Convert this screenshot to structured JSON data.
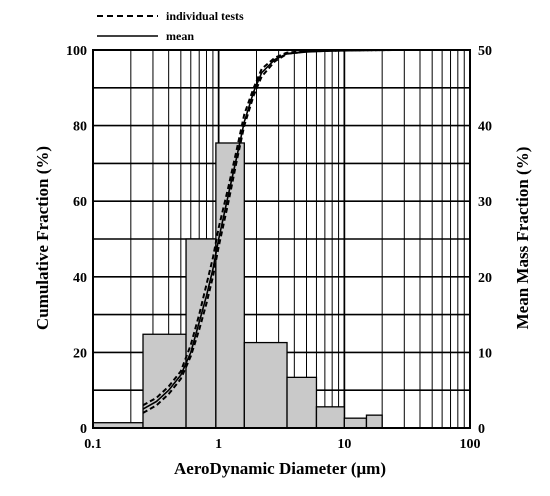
{
  "chart_data": {
    "type": "bar",
    "xlabel": "AeroDynamic Diameter (μm)",
    "ylabel_left": "Cumulative Fraction (%)",
    "ylabel_right": "Mean Mass Fraction (%)",
    "x_scale": "log",
    "xlim": [
      0.1,
      100
    ],
    "ylim_left": [
      0,
      100
    ],
    "ylim_right": [
      0,
      50
    ],
    "grid": true,
    "x_ticks": [
      "0.1",
      "1",
      "10",
      "100"
    ],
    "y_ticks_left": [
      "0",
      "20",
      "40",
      "60",
      "80",
      "100"
    ],
    "y_ticks_right": [
      "0",
      "10",
      "20",
      "30",
      "40",
      "50"
    ],
    "legend": {
      "placement": "top-left",
      "entries": [
        {
          "label": "individual tests",
          "style": "dashed"
        },
        {
          "label": "mean",
          "style": "solid"
        }
      ]
    },
    "histogram": {
      "name": "Mean Mass Fraction",
      "axis": "right",
      "bins": [
        {
          "x0": 0.1,
          "x1": 0.25,
          "value": 0.7
        },
        {
          "x0": 0.25,
          "x1": 0.55,
          "value": 12.4
        },
        {
          "x0": 0.55,
          "x1": 0.95,
          "value": 25.0
        },
        {
          "x0": 0.95,
          "x1": 1.6,
          "value": 37.7
        },
        {
          "x0": 1.6,
          "x1": 3.5,
          "value": 11.3
        },
        {
          "x0": 3.5,
          "x1": 6.0,
          "value": 6.7
        },
        {
          "x0": 6.0,
          "x1": 10.0,
          "value": 2.8
        },
        {
          "x0": 10.0,
          "x1": 15.0,
          "value": 1.3
        },
        {
          "x0": 15.0,
          "x1": 20.0,
          "value": 1.7
        }
      ]
    },
    "series": [
      {
        "name": "individual tests",
        "axis": "left",
        "style": "dashed",
        "x": [
          0.25,
          0.32,
          0.4,
          0.5,
          0.6,
          0.7,
          0.8,
          0.9,
          1.0,
          1.2,
          1.4,
          1.6,
          1.9,
          2.2,
          2.8,
          3.5,
          5,
          8,
          12,
          25
        ],
        "y": [
          4,
          6,
          9,
          13,
          19,
          26,
          33,
          40,
          48,
          60,
          71,
          80,
          88,
          93,
          97,
          99,
          99.6,
          99.8,
          99.9,
          100
        ]
      },
      {
        "name": "individual tests",
        "axis": "left",
        "style": "dashed",
        "x": [
          0.25,
          0.32,
          0.4,
          0.5,
          0.6,
          0.7,
          0.8,
          0.9,
          1.0,
          1.2,
          1.4,
          1.6,
          1.9,
          2.2,
          2.8,
          3.5,
          5,
          8,
          12,
          25
        ],
        "y": [
          6,
          8,
          11,
          15,
          22,
          30,
          38,
          45,
          53,
          64,
          74,
          83,
          90,
          95,
          98,
          99.3,
          99.7,
          99.8,
          99.9,
          100
        ]
      },
      {
        "name": "mean",
        "axis": "left",
        "style": "solid",
        "x": [
          0.25,
          0.32,
          0.4,
          0.5,
          0.6,
          0.7,
          0.8,
          0.9,
          1.0,
          1.2,
          1.4,
          1.6,
          1.9,
          2.2,
          2.8,
          3.5,
          5,
          8,
          12,
          25
        ],
        "y": [
          5,
          7,
          10,
          14,
          20,
          28,
          35,
          42,
          50,
          62,
          72,
          81,
          89,
          94,
          97.5,
          99,
          99.5,
          99.8,
          99.9,
          100
        ]
      }
    ]
  }
}
